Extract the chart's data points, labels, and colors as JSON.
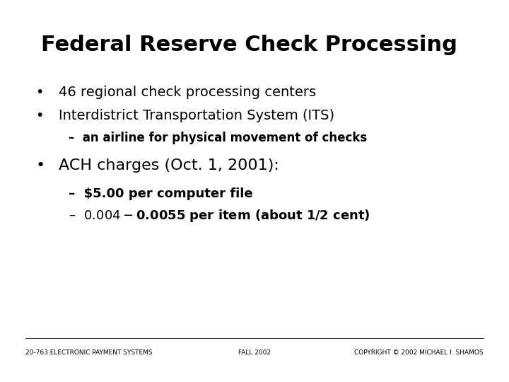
{
  "title": "Federal Reserve Check Processing",
  "background_color": "#ffffff",
  "title_fontsize": 22,
  "title_fontweight": "bold",
  "bullet1": "46 regional check processing centers",
  "bullet2": "Interdistrict Transportation System (ITS)",
  "sub1": "–  an airline for physical movement of checks",
  "bullet3": "ACH charges (Oct. 1, 2001):",
  "sub2": "–  $5.00 per computer file",
  "sub3": "–  $0.004 - $0.0055 per item (about 1/2 cent)",
  "footer_left": "20-763 ELECTRONIC PAYMENT SYSTEMS",
  "footer_center": "FALL 2002",
  "footer_right": "COPYRIGHT © 2002 MICHAEL I. SHAMOS",
  "footer_fontsize": 6.5,
  "bullet_fontsize": 14,
  "sub1_fontsize": 12,
  "bullet3_fontsize": 16,
  "sub23_fontsize": 13,
  "text_color": "#000000"
}
